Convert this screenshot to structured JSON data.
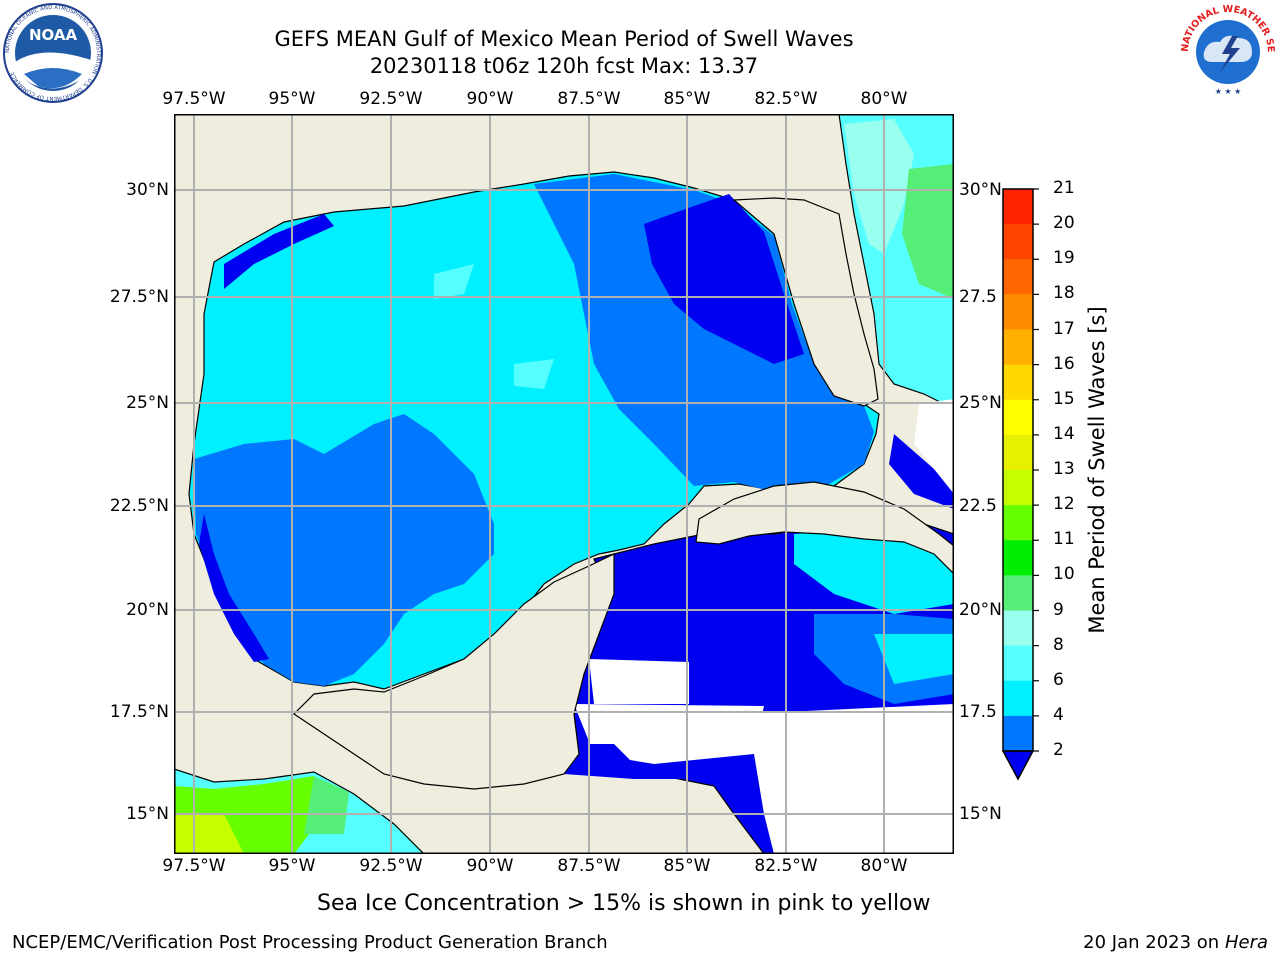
{
  "header": {
    "title": "GEFS MEAN Gulf of Mexico Mean Period of Swell Waves",
    "subtitle": "20230118 t06z 120h fcst   Max: 13.37"
  },
  "logos": {
    "left": {
      "name": "NOAA",
      "text": "NOAA",
      "ring_text": "NATIONAL OCEANIC AND ATMOSPHERIC ADMINISTRATION · U.S. DEPARTMENT OF COMMERCE"
    },
    "right": {
      "name": "National Weather Service",
      "ring_text": "NATIONAL WEATHER SERVICE"
    }
  },
  "map": {
    "lon_labels": [
      "97.5°W",
      "95°W",
      "92.5°W",
      "90°W",
      "87.5°W",
      "85°W",
      "82.5°W",
      "80°W"
    ],
    "lat_labels_left": [
      "30°N",
      "27.5°N",
      "25°N",
      "22.5°N",
      "20°N",
      "17.5°N",
      "15°N"
    ],
    "lat_labels_right": [
      "30°N",
      "27.5",
      "25°N",
      "22.5",
      "20°N",
      "17.5",
      "15°N"
    ],
    "land_color": "#efedde",
    "grid_color": "#b0b0b0"
  },
  "colorbar": {
    "label": "Mean Period of Swell Waves [s]",
    "ticks": [
      "21",
      "20",
      "19",
      "18",
      "17",
      "16",
      "15",
      "14",
      "13",
      "12",
      "11",
      "10",
      "9",
      "8",
      "6",
      "4",
      "2"
    ],
    "colors": [
      "#ff0000",
      "#ff2200",
      "#ff4400",
      "#ff6600",
      "#ff8c00",
      "#ffb000",
      "#ffd800",
      "#ffff00",
      "#e6f000",
      "#c6ff00",
      "#66ff00",
      "#00ee00",
      "#55ee77",
      "#99ffee",
      "#55ffff",
      "#00f0ff",
      "#0077ff",
      "#0000f0"
    ]
  },
  "note": "Sea Ice Concentration > 15% is shown in pink to yellow",
  "footer": {
    "left": "NCEP/EMC/Verification Post Processing Product Generation Branch",
    "date": "20 Jan 2023 on ",
    "machine": "Hera"
  }
}
